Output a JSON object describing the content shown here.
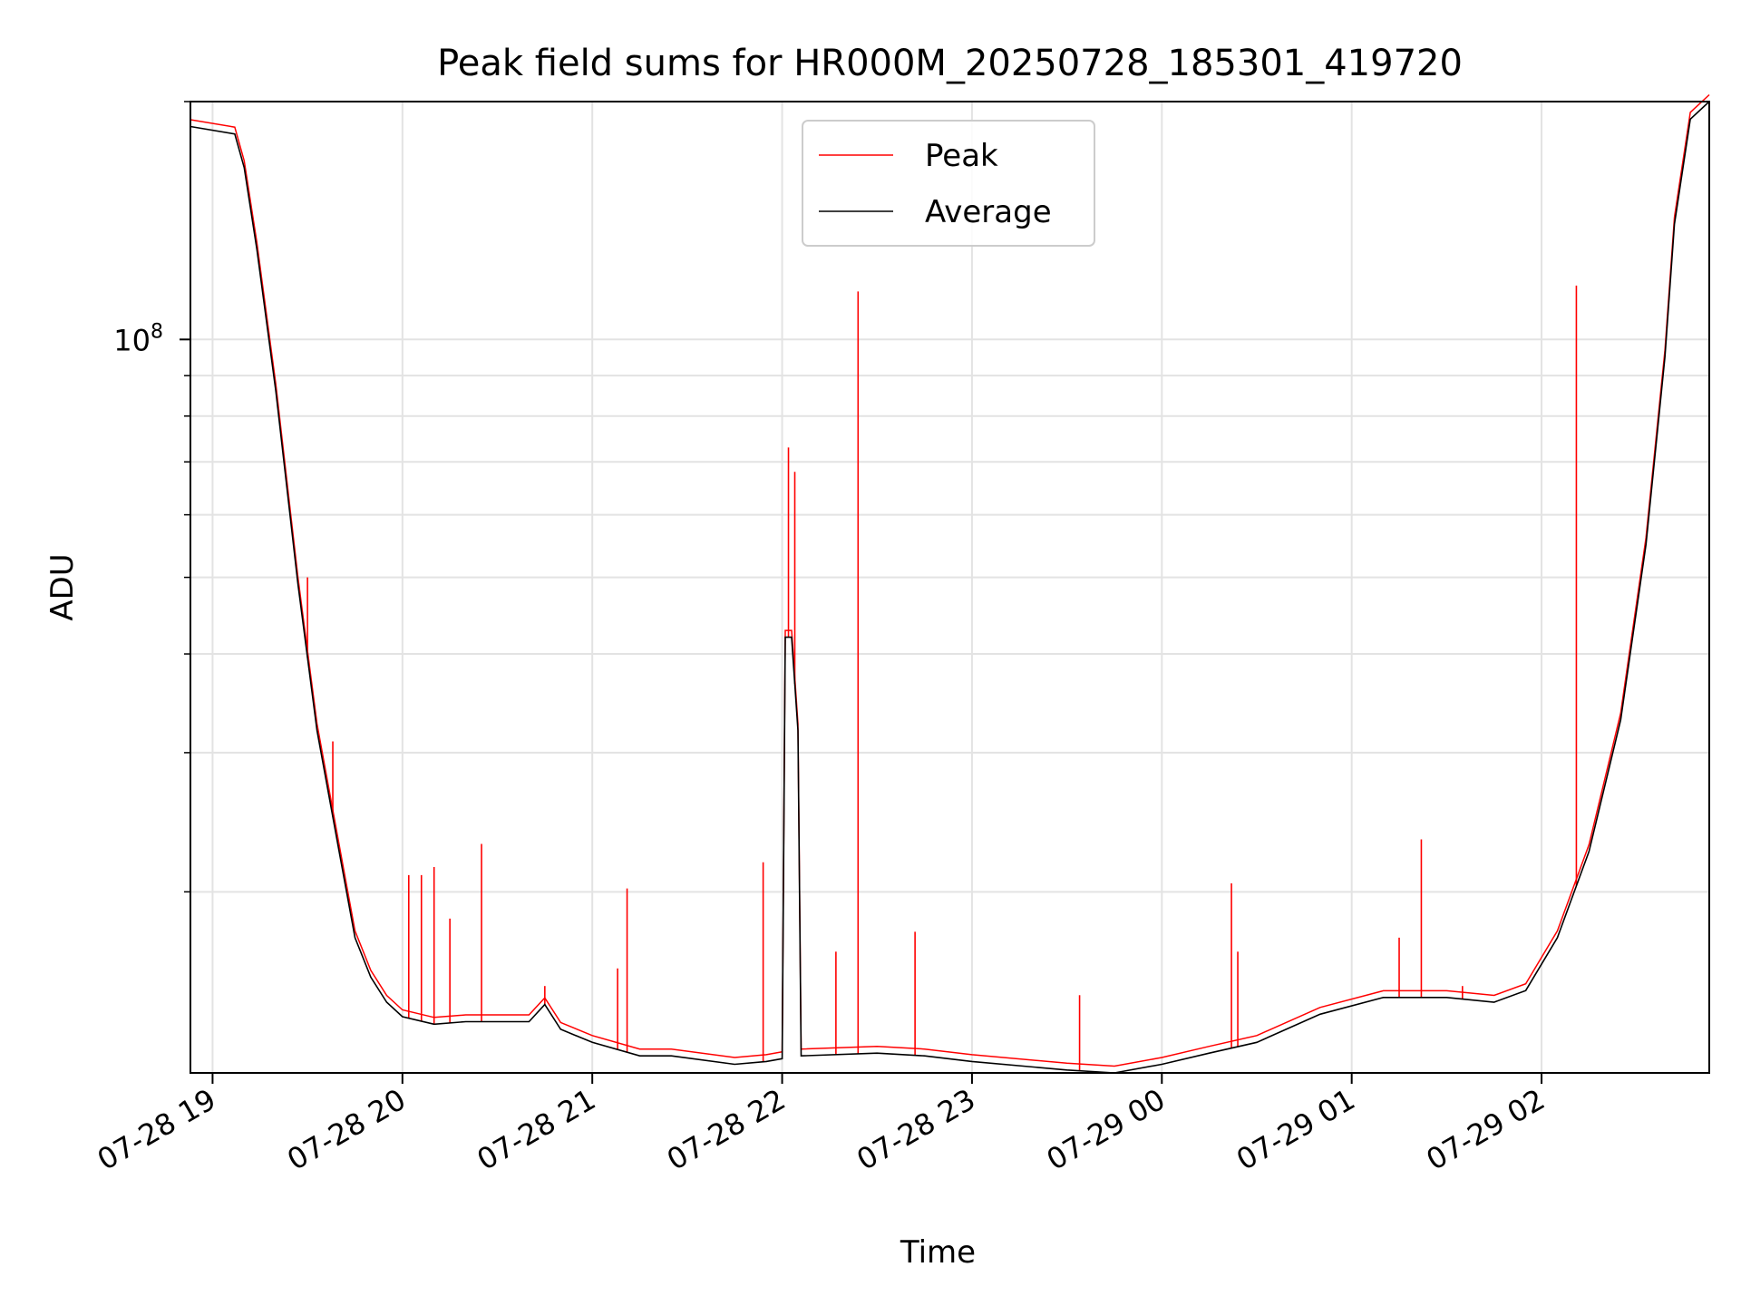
{
  "chart_data": {
    "type": "line",
    "title": "Peak field sums for HR000M_20250728_185301_419720",
    "xlabel": "Time",
    "ylabel": "ADU",
    "x_axis": {
      "kind": "datetime",
      "range": [
        "2025-07-28 18:53",
        "2025-07-29 02:53"
      ],
      "ticks": [
        "2025-07-28 19:00",
        "2025-07-28 20:00",
        "2025-07-28 21:00",
        "2025-07-28 22:00",
        "2025-07-28 23:00",
        "2025-07-29 00:00",
        "2025-07-29 01:00",
        "2025-07-29 02:00"
      ],
      "tick_labels": [
        "07-28 19",
        "07-28 20",
        "07-28 21",
        "07-28 22",
        "07-28 23",
        "07-29 00",
        "07-29 01",
        "07-29 02"
      ]
    },
    "y_axis": {
      "scale": "log",
      "range": [
        11800000,
        200000000
      ],
      "major_ticks": [
        100000000
      ],
      "major_tick_labels": [
        "10^8"
      ],
      "minor_ticks": [
        20000000,
        30000000,
        40000000,
        50000000,
        60000000,
        70000000,
        80000000,
        90000000,
        200000000
      ]
    },
    "grid": true,
    "legend": {
      "position": "top-center",
      "entries": [
        "Peak",
        "Average"
      ]
    },
    "colors": {
      "Peak": "#ff0000",
      "Average": "#000000"
    },
    "series": [
      {
        "name": "Average",
        "x": [
          "2025-07-28 18:53",
          "2025-07-28 19:07",
          "2025-07-28 19:10",
          "2025-07-28 19:14",
          "2025-07-28 19:20",
          "2025-07-28 19:27",
          "2025-07-28 19:33",
          "2025-07-28 19:40",
          "2025-07-28 19:45",
          "2025-07-28 19:50",
          "2025-07-28 19:55",
          "2025-07-28 20:00",
          "2025-07-28 20:10",
          "2025-07-28 20:20",
          "2025-07-28 20:40",
          "2025-07-28 20:45",
          "2025-07-28 20:50",
          "2025-07-28 21:00",
          "2025-07-28 21:15",
          "2025-07-28 21:25",
          "2025-07-28 21:45",
          "2025-07-28 21:55",
          "2025-07-28 22:00",
          "2025-07-28 22:01",
          "2025-07-28 22:03",
          "2025-07-28 22:05",
          "2025-07-28 22:06",
          "2025-07-28 22:30",
          "2025-07-28 22:45",
          "2025-07-28 23:00",
          "2025-07-28 23:30",
          "2025-07-28 23:45",
          "2025-07-29 00:00",
          "2025-07-29 00:15",
          "2025-07-29 00:30",
          "2025-07-29 00:50",
          "2025-07-29 01:10",
          "2025-07-29 01:30",
          "2025-07-29 01:45",
          "2025-07-29 01:55",
          "2025-07-29 02:05",
          "2025-07-29 02:15",
          "2025-07-29 02:25",
          "2025-07-29 02:33",
          "2025-07-29 02:39",
          "2025-07-29 02:42",
          "2025-07-29 02:47",
          "2025-07-29 02:53"
        ],
        "y": [
          186000000,
          182000000,
          165000000,
          130000000,
          86000000,
          49000000,
          32000000,
          22500000,
          17500000,
          15600000,
          14500000,
          13900000,
          13600000,
          13700000,
          13700000,
          14400000,
          13400000,
          12900000,
          12400000,
          12400000,
          12100000,
          12200000,
          12300000,
          42000000,
          42000000,
          32000000,
          12400000,
          12500000,
          12400000,
          12200000,
          11900000,
          11800000,
          12100000,
          12500000,
          12900000,
          14000000,
          14700000,
          14700000,
          14500000,
          15000000,
          17500000,
          22500000,
          33000000,
          55000000,
          95000000,
          140000000,
          190000000,
          200000000
        ]
      },
      {
        "name": "Peak",
        "x": [
          "2025-07-28 19:30",
          "2025-07-28 19:38",
          "2025-07-28 20:02",
          "2025-07-28 20:06",
          "2025-07-28 20:10",
          "2025-07-28 20:15",
          "2025-07-28 20:25",
          "2025-07-28 20:45",
          "2025-07-28 21:08",
          "2025-07-28 21:11",
          "2025-07-28 21:54",
          "2025-07-28 22:02",
          "2025-07-28 22:04",
          "2025-07-28 22:17",
          "2025-07-28 22:24",
          "2025-07-28 22:42",
          "2025-07-28 23:34",
          "2025-07-29 00:22",
          "2025-07-29 00:24",
          "2025-07-29 01:15",
          "2025-07-29 01:22",
          "2025-07-29 01:35",
          "2025-07-29 02:11"
        ],
        "y": [
          50000000,
          31000000,
          21000000,
          21000000,
          21500000,
          18500000,
          23000000,
          15200000,
          16000000,
          20200000,
          21800000,
          73000000,
          68000000,
          16800000,
          115000000,
          17800000,
          14800000,
          20500000,
          16800000,
          17500000,
          23300000,
          15200000,
          117000000
        ]
      }
    ]
  }
}
